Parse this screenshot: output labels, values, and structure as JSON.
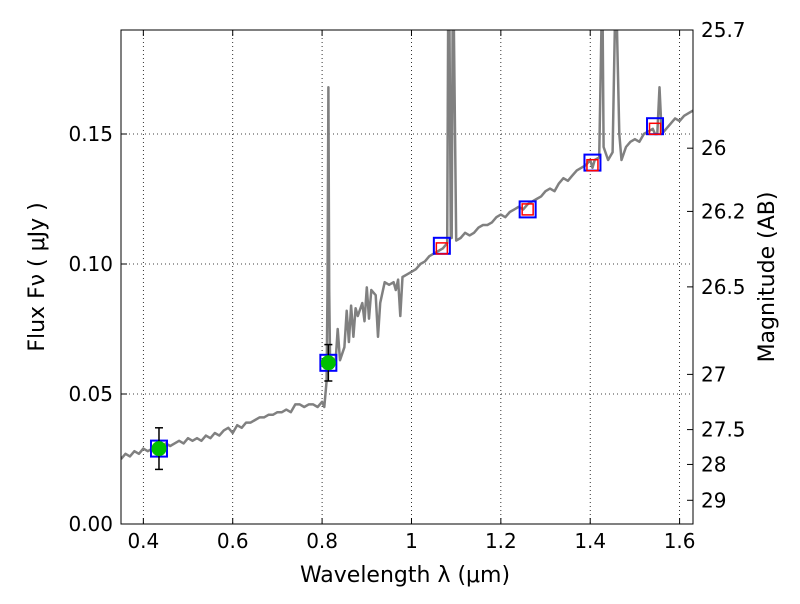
{
  "chart_data": {
    "type": "line",
    "xlabel": "Wavelength  λ (μm)",
    "ylabel": "Flux  Fν  ( μJy )",
    "ylabel_right": "Magnitude (AB)",
    "xlim": [
      0.35,
      1.63
    ],
    "ylim": [
      0.0,
      0.19
    ],
    "grid": true,
    "x_ticks": [
      {
        "v": 0.4,
        "label": "0.4"
      },
      {
        "v": 0.6,
        "label": "0.6"
      },
      {
        "v": 0.8,
        "label": "0.8"
      },
      {
        "v": 1.0,
        "label": "1"
      },
      {
        "v": 1.2,
        "label": "1.2"
      },
      {
        "v": 1.4,
        "label": "1.4"
      },
      {
        "v": 1.6,
        "label": "1.6"
      }
    ],
    "y_ticks": [
      {
        "v": 0.0,
        "label": "0.00"
      },
      {
        "v": 0.05,
        "label": "0.05"
      },
      {
        "v": 0.1,
        "label": "0.10"
      },
      {
        "v": 0.15,
        "label": "0.15"
      }
    ],
    "mag_ticks": [
      {
        "v": 25.7,
        "label": "25.7"
      },
      {
        "v": 26.0,
        "label": "26"
      },
      {
        "v": 26.2,
        "label": "26.2"
      },
      {
        "v": 26.5,
        "label": "26.5"
      },
      {
        "v": 27.0,
        "label": "27"
      },
      {
        "v": 27.5,
        "label": "27.5"
      },
      {
        "v": 28.0,
        "label": "28"
      },
      {
        "v": 29.0,
        "label": "29"
      }
    ],
    "spectrum": {
      "color": "#808080",
      "points": [
        [
          0.35,
          0.025
        ],
        [
          0.36,
          0.027
        ],
        [
          0.37,
          0.026
        ],
        [
          0.38,
          0.028
        ],
        [
          0.39,
          0.027
        ],
        [
          0.4,
          0.029
        ],
        [
          0.41,
          0.028
        ],
        [
          0.42,
          0.029
        ],
        [
          0.43,
          0.03
        ],
        [
          0.44,
          0.029
        ],
        [
          0.45,
          0.031
        ],
        [
          0.46,
          0.03
        ],
        [
          0.47,
          0.031
        ],
        [
          0.48,
          0.032
        ],
        [
          0.49,
          0.031
        ],
        [
          0.5,
          0.033
        ],
        [
          0.51,
          0.032
        ],
        [
          0.52,
          0.033
        ],
        [
          0.53,
          0.032
        ],
        [
          0.54,
          0.034
        ],
        [
          0.55,
          0.033
        ],
        [
          0.56,
          0.035
        ],
        [
          0.57,
          0.034
        ],
        [
          0.58,
          0.036
        ],
        [
          0.59,
          0.037
        ],
        [
          0.6,
          0.035
        ],
        [
          0.61,
          0.038
        ],
        [
          0.62,
          0.037
        ],
        [
          0.63,
          0.039
        ],
        [
          0.64,
          0.039
        ],
        [
          0.65,
          0.04
        ],
        [
          0.66,
          0.041
        ],
        [
          0.67,
          0.041
        ],
        [
          0.68,
          0.042
        ],
        [
          0.69,
          0.042
        ],
        [
          0.7,
          0.043
        ],
        [
          0.71,
          0.043
        ],
        [
          0.72,
          0.044
        ],
        [
          0.73,
          0.043
        ],
        [
          0.74,
          0.046
        ],
        [
          0.75,
          0.046
        ],
        [
          0.76,
          0.045
        ],
        [
          0.77,
          0.046
        ],
        [
          0.78,
          0.046
        ],
        [
          0.79,
          0.045
        ],
        [
          0.8,
          0.047
        ],
        [
          0.805,
          0.045
        ],
        [
          0.81,
          0.055
        ],
        [
          0.812,
          0.09
        ],
        [
          0.814,
          0.168
        ],
        [
          0.816,
          0.09
        ],
        [
          0.818,
          0.062
        ],
        [
          0.82,
          0.06
        ],
        [
          0.83,
          0.062
        ],
        [
          0.835,
          0.075
        ],
        [
          0.84,
          0.063
        ],
        [
          0.85,
          0.068
        ],
        [
          0.855,
          0.082
        ],
        [
          0.86,
          0.07
        ],
        [
          0.865,
          0.084
        ],
        [
          0.87,
          0.072
        ],
        [
          0.875,
          0.083
        ],
        [
          0.88,
          0.08
        ],
        [
          0.89,
          0.085
        ],
        [
          0.895,
          0.078
        ],
        [
          0.9,
          0.091
        ],
        [
          0.905,
          0.079
        ],
        [
          0.91,
          0.09
        ],
        [
          0.92,
          0.088
        ],
        [
          0.925,
          0.072
        ],
        [
          0.93,
          0.085
        ],
        [
          0.94,
          0.093
        ],
        [
          0.95,
          0.092
        ],
        [
          0.96,
          0.093
        ],
        [
          0.965,
          0.09
        ],
        [
          0.97,
          0.094
        ],
        [
          0.975,
          0.08
        ],
        [
          0.98,
          0.095
        ],
        [
          0.99,
          0.096
        ],
        [
          1.0,
          0.097
        ],
        [
          1.01,
          0.098
        ],
        [
          1.02,
          0.1
        ],
        [
          1.03,
          0.101
        ],
        [
          1.04,
          0.103
        ],
        [
          1.05,
          0.104
        ],
        [
          1.06,
          0.105
        ],
        [
          1.07,
          0.106
        ],
        [
          1.08,
          0.108
        ],
        [
          1.082,
          0.19
        ],
        [
          1.085,
          0.19
        ],
        [
          1.088,
          0.11
        ],
        [
          1.09,
          0.11
        ],
        [
          1.092,
          0.19
        ],
        [
          1.095,
          0.19
        ],
        [
          1.1,
          0.109
        ],
        [
          1.11,
          0.11
        ],
        [
          1.12,
          0.112
        ],
        [
          1.13,
          0.111
        ],
        [
          1.14,
          0.112
        ],
        [
          1.15,
          0.114
        ],
        [
          1.16,
          0.115
        ],
        [
          1.17,
          0.115
        ],
        [
          1.18,
          0.116
        ],
        [
          1.19,
          0.118
        ],
        [
          1.2,
          0.119
        ],
        [
          1.21,
          0.118
        ],
        [
          1.22,
          0.12
        ],
        [
          1.23,
          0.121
        ],
        [
          1.24,
          0.122
        ],
        [
          1.25,
          0.121
        ],
        [
          1.26,
          0.123
        ],
        [
          1.27,
          0.124
        ],
        [
          1.28,
          0.125
        ],
        [
          1.29,
          0.126
        ],
        [
          1.3,
          0.128
        ],
        [
          1.31,
          0.129
        ],
        [
          1.32,
          0.128
        ],
        [
          1.33,
          0.131
        ],
        [
          1.34,
          0.133
        ],
        [
          1.35,
          0.132
        ],
        [
          1.36,
          0.134
        ],
        [
          1.37,
          0.136
        ],
        [
          1.38,
          0.137
        ],
        [
          1.39,
          0.138
        ],
        [
          1.4,
          0.14
        ],
        [
          1.405,
          0.137
        ],
        [
          1.41,
          0.14
        ],
        [
          1.42,
          0.141
        ],
        [
          1.425,
          0.19
        ],
        [
          1.428,
          0.19
        ],
        [
          1.43,
          0.145
        ],
        [
          1.44,
          0.14
        ],
        [
          1.45,
          0.143
        ],
        [
          1.455,
          0.19
        ],
        [
          1.46,
          0.19
        ],
        [
          1.465,
          0.15
        ],
        [
          1.47,
          0.14
        ],
        [
          1.48,
          0.145
        ],
        [
          1.49,
          0.147
        ],
        [
          1.5,
          0.148
        ],
        [
          1.51,
          0.147
        ],
        [
          1.52,
          0.15
        ],
        [
          1.53,
          0.151
        ],
        [
          1.54,
          0.152
        ],
        [
          1.545,
          0.15
        ],
        [
          1.55,
          0.15
        ],
        [
          1.555,
          0.168
        ],
        [
          1.56,
          0.15
        ],
        [
          1.57,
          0.152
        ],
        [
          1.58,
          0.154
        ],
        [
          1.59,
          0.156
        ],
        [
          1.6,
          0.155
        ],
        [
          1.61,
          0.157
        ],
        [
          1.62,
          0.158
        ],
        [
          1.63,
          0.159
        ]
      ]
    },
    "photometry_green": {
      "color": "#00c000",
      "points": [
        {
          "x": 0.435,
          "y": 0.029,
          "err": 0.008
        },
        {
          "x": 0.814,
          "y": 0.062,
          "err": 0.007
        }
      ]
    },
    "model_squares_blue": {
      "color": "#0000ff",
      "points": [
        {
          "x": 0.435,
          "y": 0.029
        },
        {
          "x": 0.814,
          "y": 0.062
        },
        {
          "x": 1.068,
          "y": 0.107
        },
        {
          "x": 1.26,
          "y": 0.121
        },
        {
          "x": 1.405,
          "y": 0.139
        },
        {
          "x": 1.545,
          "y": 0.153
        }
      ]
    },
    "model_squares_red": {
      "color": "#ff0000",
      "points": [
        {
          "x": 1.068,
          "y": 0.106
        },
        {
          "x": 1.26,
          "y": 0.121
        },
        {
          "x": 1.405,
          "y": 0.138
        },
        {
          "x": 1.545,
          "y": 0.152
        }
      ]
    }
  }
}
